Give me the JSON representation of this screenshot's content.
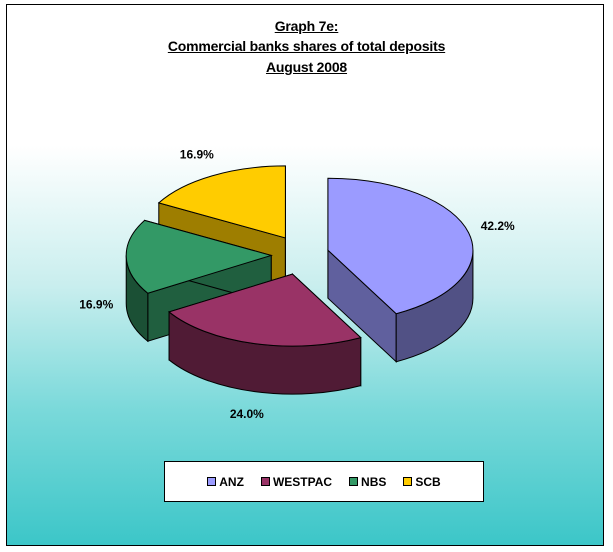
{
  "chart_data": {
    "type": "pie",
    "title_lines": [
      "Graph 7e:",
      "Commercial banks shares of total deposits",
      "August 2008"
    ],
    "categories": [
      "ANZ",
      "WESTPAC",
      "NBS",
      "SCB"
    ],
    "values": [
      42.2,
      24.0,
      16.9,
      16.9
    ],
    "data_labels": [
      "42.2%",
      "24.0%",
      "16.9%",
      "16.9%"
    ],
    "legend": "bottom",
    "three_d": true,
    "exploded": true
  },
  "colors": {
    "ANZ": "#9b9bff",
    "WESTPAC": "#993366",
    "NBS": "#339966",
    "SCB": "#ffcc00"
  }
}
